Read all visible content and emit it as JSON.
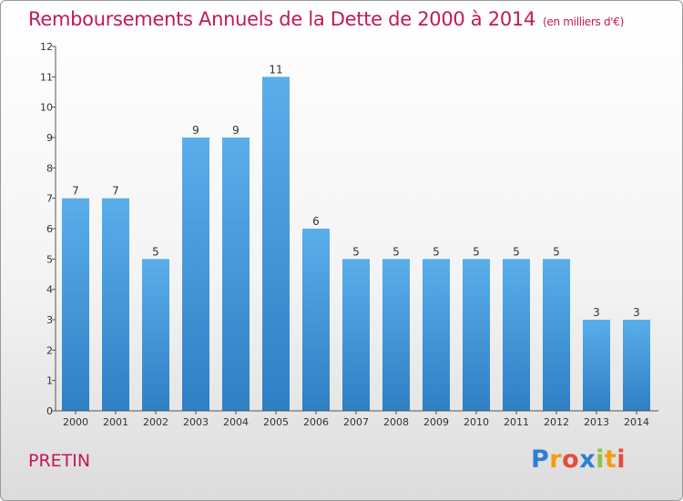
{
  "header": {
    "title": "Remboursements Annuels de la Dette de 2000 à 2014",
    "subtitle": "(en milliers d'€)"
  },
  "footer": {
    "town": "PRETIN",
    "logo": "Proxiti"
  },
  "colors": {
    "title": "#c2185b",
    "bar_light": "#5aaeea",
    "bar_dark": "#2f7fc4"
  },
  "chart_data": {
    "type": "bar",
    "title": "Remboursements Annuels de la Dette de 2000 à 2014",
    "subtitle": "(en milliers d'€)",
    "xlabel": "",
    "ylabel": "",
    "categories": [
      "2000",
      "2001",
      "2002",
      "2003",
      "2004",
      "2005",
      "2006",
      "2007",
      "2008",
      "2009",
      "2010",
      "2011",
      "2012",
      "2013",
      "2014"
    ],
    "values": [
      7,
      7,
      5,
      9,
      9,
      11,
      6,
      5,
      5,
      5,
      5,
      5,
      5,
      3,
      3
    ],
    "ylim": [
      0,
      12
    ],
    "yticks": [
      0,
      1,
      2,
      3,
      4,
      5,
      6,
      7,
      8,
      9,
      10,
      11,
      12
    ],
    "grid": false,
    "data_labels": true
  }
}
